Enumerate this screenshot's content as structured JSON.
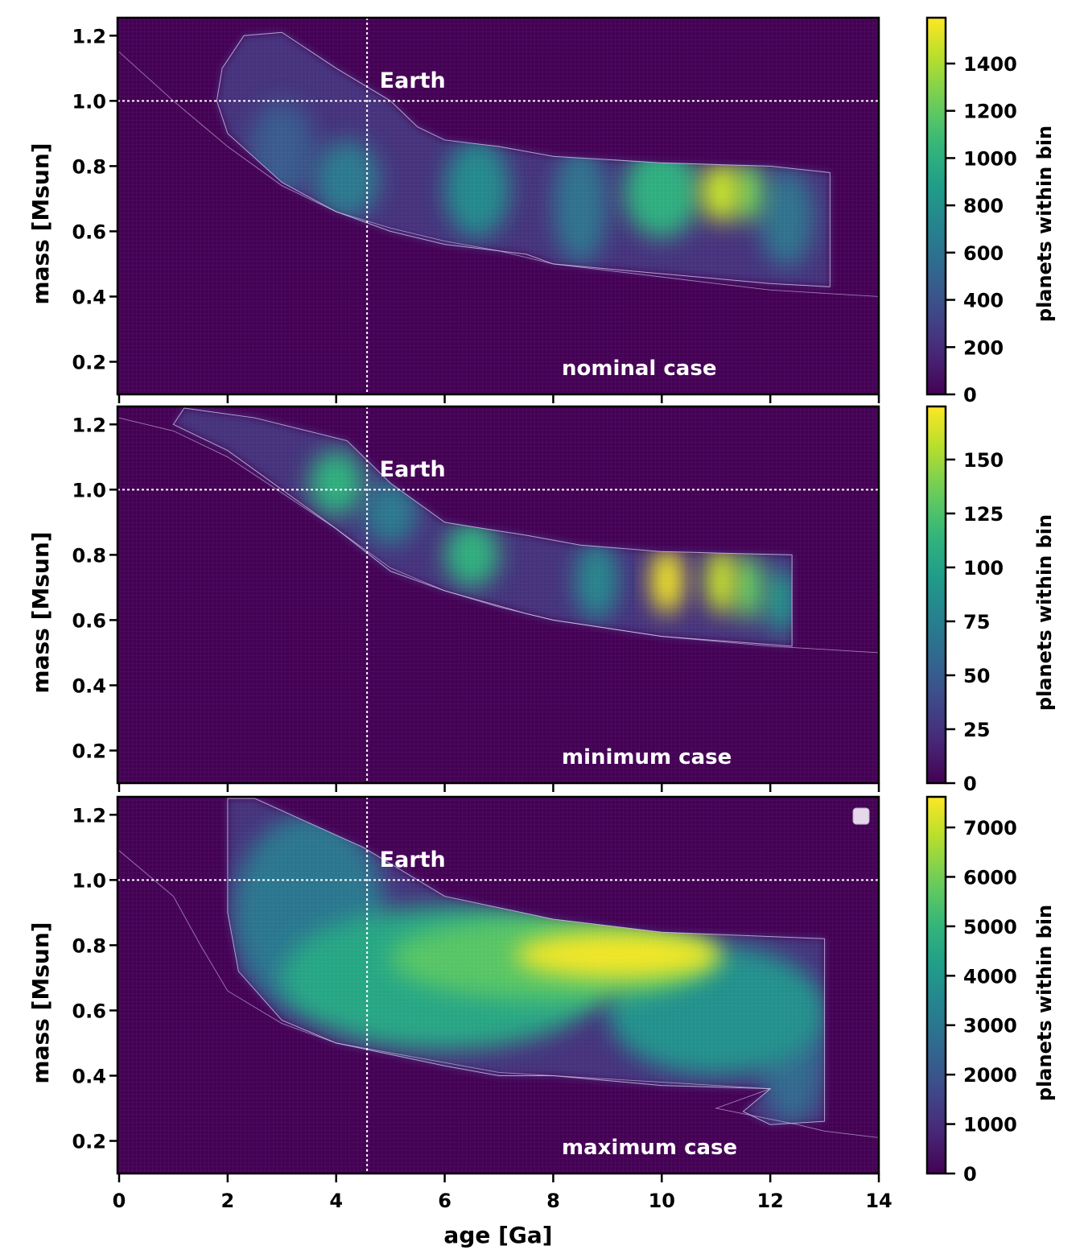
{
  "chart_data": {
    "type": "heatmap",
    "shared_x": {
      "label": "age [Ga]",
      "xlim": [
        0,
        14
      ],
      "ticks": [
        0,
        2,
        4,
        6,
        8,
        10,
        12,
        14
      ]
    },
    "reference_lines": {
      "age_earth": 4.57,
      "mass_earth": 1.0,
      "label": "Earth",
      "color": "#ffffff",
      "style": "dotted"
    },
    "contour_color": "#d8cdf0",
    "colormap": "viridis",
    "panels": [
      {
        "case_label": "nominal case",
        "ylabel": "mass [Msun]",
        "ylim": [
          0.1,
          1.255
        ],
        "yticks": [
          0.2,
          0.4,
          0.6,
          0.8,
          1.0,
          1.2
        ],
        "colorbar": {
          "label": "planets within bin",
          "max": 1594,
          "ticks": [
            0,
            200,
            400,
            600,
            800,
            1000,
            1200,
            1400
          ]
        },
        "outer_contour": [
          [
            0,
            1.15
          ],
          [
            1,
            1.0
          ],
          [
            2,
            0.86
          ],
          [
            3,
            0.74
          ],
          [
            4,
            0.66
          ],
          [
            5,
            0.61
          ],
          [
            6,
            0.57
          ],
          [
            7,
            0.54
          ],
          [
            8,
            0.5
          ],
          [
            10,
            0.46
          ],
          [
            12,
            0.42
          ],
          [
            13,
            0.41
          ],
          [
            14,
            0.4
          ]
        ],
        "region": [
          [
            1.9,
            1.1
          ],
          [
            2.3,
            1.2
          ],
          [
            3,
            1.21
          ],
          [
            4,
            1.1
          ],
          [
            5,
            1.0
          ],
          [
            5.5,
            0.92
          ],
          [
            6,
            0.88
          ],
          [
            7,
            0.86
          ],
          [
            8,
            0.83
          ],
          [
            9,
            0.82
          ],
          [
            10,
            0.81
          ],
          [
            12,
            0.8
          ],
          [
            13.1,
            0.78
          ],
          [
            13.1,
            0.43
          ],
          [
            12,
            0.44
          ],
          [
            10,
            0.47
          ],
          [
            8,
            0.5
          ],
          [
            7.5,
            0.53
          ],
          [
            6,
            0.56
          ],
          [
            5,
            0.6
          ],
          [
            4,
            0.66
          ],
          [
            3,
            0.75
          ],
          [
            2,
            0.9
          ],
          [
            1.8,
            1.0
          ]
        ],
        "hotspots": [
          {
            "age": 3.0,
            "mass": 0.85,
            "d_age": 0.6,
            "d_mass": 0.15,
            "value": 450
          },
          {
            "age": 4.2,
            "mass": 0.76,
            "d_age": 0.6,
            "d_mass": 0.12,
            "value": 650
          },
          {
            "age": 6.6,
            "mass": 0.73,
            "d_age": 0.6,
            "d_mass": 0.15,
            "value": 750
          },
          {
            "age": 8.5,
            "mass": 0.68,
            "d_age": 0.5,
            "d_mass": 0.18,
            "value": 600
          },
          {
            "age": 10.0,
            "mass": 0.72,
            "d_age": 0.7,
            "d_mass": 0.14,
            "value": 1000
          },
          {
            "age": 12.3,
            "mass": 0.64,
            "d_age": 0.5,
            "d_mass": 0.15,
            "value": 600
          },
          {
            "age": 11.6,
            "mass": 0.72,
            "d_age": 0.3,
            "d_mass": 0.09,
            "value": 1200
          },
          {
            "age": 11.1,
            "mass": 0.72,
            "d_age": 0.4,
            "d_mass": 0.09,
            "value": 1450
          }
        ]
      },
      {
        "case_label": "minimum case",
        "ylabel": "mass [Msun]",
        "ylim": [
          0.1,
          1.255
        ],
        "yticks": [
          0.2,
          0.4,
          0.6,
          0.8,
          1.0,
          1.2
        ],
        "colorbar": {
          "label": "planets within bin",
          "max": 174.6,
          "ticks": [
            0,
            25,
            50,
            75,
            100,
            125,
            150
          ]
        },
        "outer_contour": [
          [
            0,
            1.22
          ],
          [
            1,
            1.18
          ],
          [
            2,
            1.1
          ],
          [
            3,
            0.99
          ],
          [
            4,
            0.88
          ],
          [
            5,
            0.76
          ],
          [
            6,
            0.69
          ],
          [
            7,
            0.64
          ],
          [
            8,
            0.6
          ],
          [
            10,
            0.55
          ],
          [
            12,
            0.52
          ],
          [
            14,
            0.5
          ]
        ],
        "region": [
          [
            1.2,
            1.25
          ],
          [
            2.5,
            1.22
          ],
          [
            4.2,
            1.15
          ],
          [
            5,
            1.02
          ],
          [
            6,
            0.9
          ],
          [
            7.5,
            0.86
          ],
          [
            8.5,
            0.83
          ],
          [
            10,
            0.81
          ],
          [
            12.4,
            0.8
          ],
          [
            12.4,
            0.52
          ],
          [
            10,
            0.55
          ],
          [
            8,
            0.6
          ],
          [
            7.5,
            0.62
          ],
          [
            6,
            0.69
          ],
          [
            5,
            0.75
          ],
          [
            4,
            0.88
          ],
          [
            3,
            1.0
          ],
          [
            2,
            1.12
          ],
          [
            1,
            1.2
          ]
        ],
        "hotspots": [
          {
            "age": 5.0,
            "mass": 0.93,
            "d_age": 0.5,
            "d_mass": 0.1,
            "value": 70
          },
          {
            "age": 4.0,
            "mass": 1.02,
            "d_age": 0.5,
            "d_mass": 0.1,
            "value": 110
          },
          {
            "age": 6.5,
            "mass": 0.8,
            "d_age": 0.5,
            "d_mass": 0.1,
            "value": 110
          },
          {
            "age": 8.8,
            "mass": 0.72,
            "d_age": 0.4,
            "d_mass": 0.12,
            "value": 80
          },
          {
            "age": 12.2,
            "mass": 0.66,
            "d_age": 0.3,
            "d_mass": 0.1,
            "value": 90
          },
          {
            "age": 11.6,
            "mass": 0.7,
            "d_age": 0.3,
            "d_mass": 0.1,
            "value": 130
          },
          {
            "age": 11.1,
            "mass": 0.72,
            "d_age": 0.3,
            "d_mass": 0.1,
            "value": 160
          },
          {
            "age": 10.1,
            "mass": 0.72,
            "d_age": 0.3,
            "d_mass": 0.1,
            "value": 172
          }
        ]
      },
      {
        "case_label": "maximum case",
        "ylabel": "mass [Msun]",
        "ylim": [
          0.1,
          1.255
        ],
        "yticks": [
          0.2,
          0.4,
          0.6,
          0.8,
          1.0,
          1.2
        ],
        "colorbar": {
          "label": "planets within bin",
          "max": 7619,
          "ticks": [
            0,
            1000,
            2000,
            3000,
            4000,
            5000,
            6000,
            7000
          ]
        },
        "legend": "top-right",
        "outer_contour": [
          [
            0,
            1.09
          ],
          [
            1,
            0.95
          ],
          [
            1.5,
            0.8
          ],
          [
            2,
            0.66
          ],
          [
            3,
            0.56
          ],
          [
            4,
            0.5
          ],
          [
            6,
            0.44
          ],
          [
            7,
            0.41
          ],
          [
            9,
            0.39
          ],
          [
            11,
            0.37
          ],
          [
            12,
            0.36
          ],
          [
            11,
            0.3
          ],
          [
            12.5,
            0.25
          ],
          [
            13,
            0.23
          ],
          [
            14,
            0.21
          ]
        ],
        "region": [
          [
            2.0,
            1.25
          ],
          [
            2.5,
            1.25
          ],
          [
            4.5,
            1.1
          ],
          [
            6,
            0.95
          ],
          [
            8,
            0.88
          ],
          [
            10,
            0.84
          ],
          [
            13,
            0.82
          ],
          [
            13,
            0.26
          ],
          [
            12,
            0.25
          ],
          [
            11.5,
            0.29
          ],
          [
            12,
            0.36
          ],
          [
            10,
            0.37
          ],
          [
            8,
            0.4
          ],
          [
            7,
            0.4
          ],
          [
            6,
            0.43
          ],
          [
            4,
            0.5
          ],
          [
            3,
            0.57
          ],
          [
            2.2,
            0.72
          ],
          [
            2,
            0.9
          ]
        ],
        "hotspots": [
          {
            "age": 3.5,
            "mass": 0.9,
            "d_age": 1.4,
            "d_mass": 0.3,
            "value": 3000
          },
          {
            "age": 12.4,
            "mass": 0.45,
            "d_age": 0.6,
            "d_mass": 0.2,
            "value": 2500
          },
          {
            "age": 11.0,
            "mass": 0.6,
            "d_age": 2.0,
            "d_mass": 0.2,
            "value": 3800
          },
          {
            "age": 6.0,
            "mass": 0.7,
            "d_age": 3.0,
            "d_mass": 0.22,
            "value": 4500
          },
          {
            "age": 8.0,
            "mass": 0.76,
            "d_age": 3.0,
            "d_mass": 0.13,
            "value": 5600
          },
          {
            "age": 9.2,
            "mass": 0.77,
            "d_age": 1.9,
            "d_mass": 0.07,
            "value": 7500
          }
        ]
      }
    ]
  }
}
